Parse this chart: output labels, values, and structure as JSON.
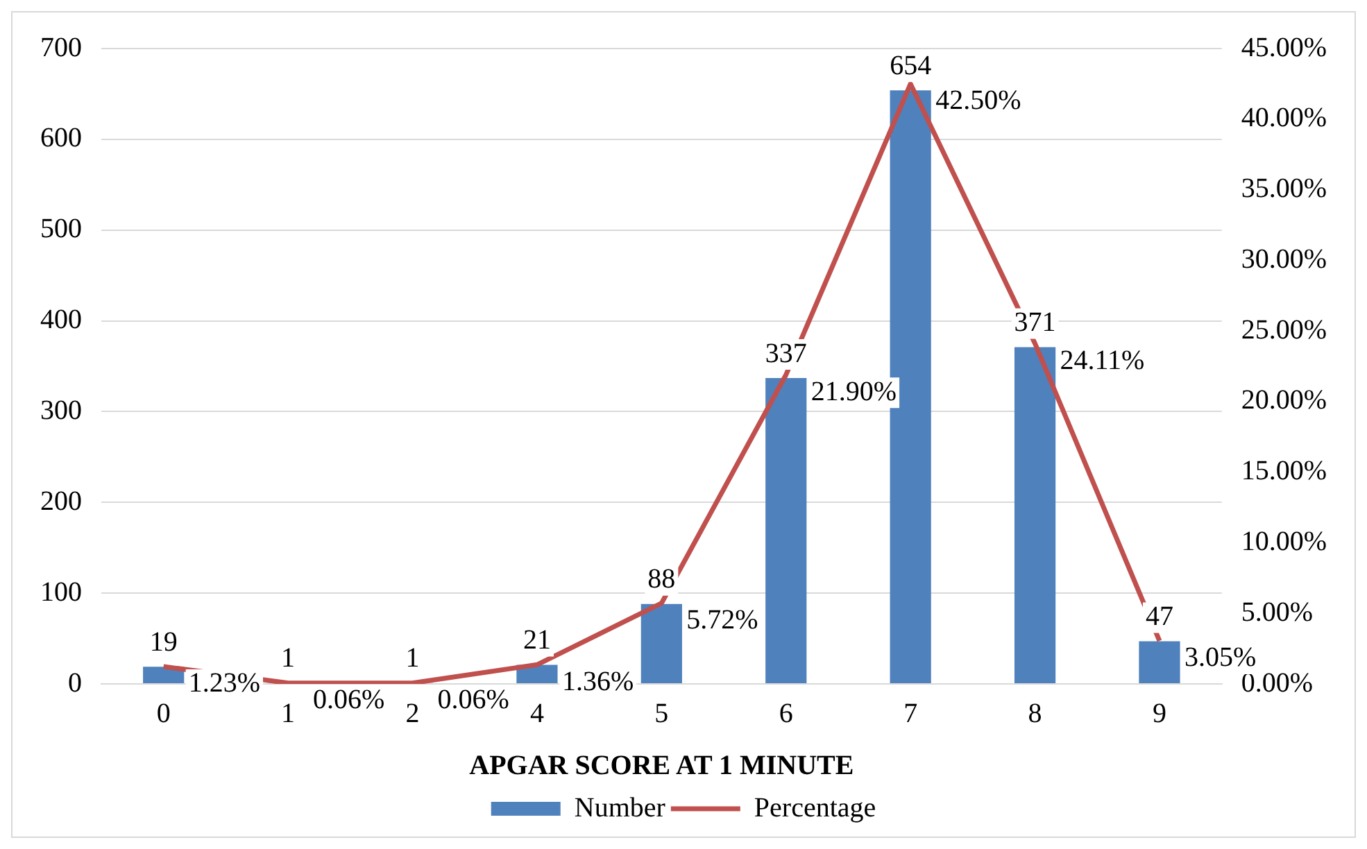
{
  "chart_data": {
    "type": "bar",
    "xlabel": "APGAR SCORE AT 1 MINUTE",
    "categories": [
      "0",
      "1",
      "2",
      "4",
      "5",
      "6",
      "7",
      "8",
      "9"
    ],
    "series": [
      {
        "name": "Number",
        "color": "#4f81bd",
        "values": [
          19,
          1,
          1,
          21,
          88,
          337,
          654,
          371,
          47
        ],
        "value_labels": [
          "19",
          "1",
          "1",
          "21",
          "88",
          "337",
          "654",
          "371",
          "47"
        ]
      },
      {
        "name": "Percentage",
        "type": "line",
        "axis": "y2",
        "color": "#c0504d",
        "values": [
          1.23,
          0.06,
          0.06,
          1.36,
          5.72,
          21.9,
          42.5,
          24.11,
          3.05
        ],
        "value_labels": [
          "1.23%",
          "0.06%",
          "0.06%",
          "1.36%",
          "5.72%",
          "21.90%",
          "42.50%",
          "24.11%",
          "3.05%"
        ]
      }
    ],
    "ylim": [
      0,
      700
    ],
    "yticks": [
      0,
      100,
      200,
      300,
      400,
      500,
      600,
      700
    ],
    "y2lim": [
      0,
      45
    ],
    "y2ticks": [
      {
        "value": 0,
        "label": "0.00%"
      },
      {
        "value": 5,
        "label": "5.00%"
      },
      {
        "value": 10,
        "label": "10.00%"
      },
      {
        "value": 15,
        "label": "15.00%"
      },
      {
        "value": 20,
        "label": "20.00%"
      },
      {
        "value": 25,
        "label": "25.00%"
      },
      {
        "value": 30,
        "label": "30.00%"
      },
      {
        "value": 35,
        "label": "35.00%"
      },
      {
        "value": 40,
        "label": "40.00%"
      },
      {
        "value": 45,
        "label": "45.00%"
      }
    ],
    "grid": "y",
    "legend": "bottom",
    "marker": "none",
    "line_style": "solid"
  }
}
